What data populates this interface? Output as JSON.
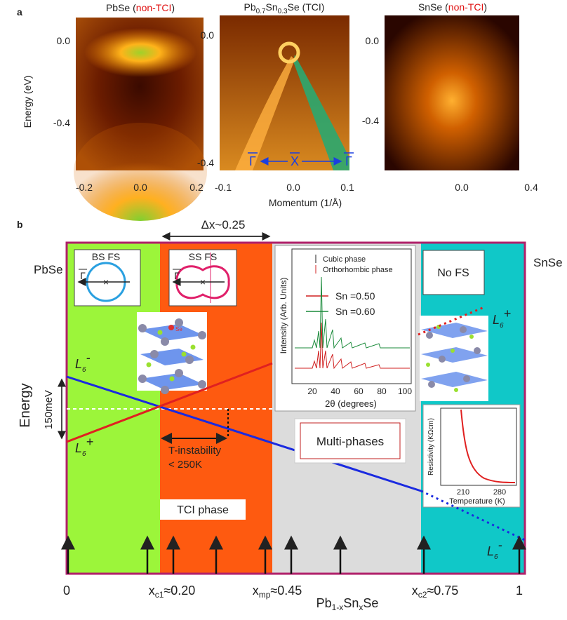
{
  "panel_a": {
    "label": "a",
    "y_axis_label": "Energy (eV)",
    "x_axis_label": "Momentum (1/Å)",
    "images": [
      {
        "title": [
          "PbSe (",
          "non-TCI",
          ")"
        ],
        "yticks": [
          "0.0",
          "-0.4"
        ],
        "xticks": [
          "-0.2",
          "0.0",
          "0.2"
        ]
      },
      {
        "title": [
          "Pb",
          "0.7",
          "Sn",
          "0.3",
          "Se (TCI)"
        ],
        "yticks": [
          "0.0",
          "-0.4"
        ],
        "xticks": [
          "-0.1",
          "0.0",
          "0.1"
        ],
        "points": [
          "Γ",
          "X",
          "Γ"
        ]
      },
      {
        "title": [
          "SnSe (",
          "non-TCI",
          ")"
        ],
        "yticks": [
          "0.0",
          "-0.4"
        ],
        "xticks": [
          "0.0",
          "0.4"
        ]
      }
    ]
  },
  "panel_b": {
    "label": "b",
    "delta_x": "Δx~0.25",
    "left_compound": "PbSe",
    "right_compound": "SnSe",
    "energy_label": "Energy",
    "energy_scale": "150meV",
    "bs_fs": {
      "label": "BS FS",
      "point": "Γ"
    },
    "ss_fs": {
      "label": "SS FS",
      "point": "Γ"
    },
    "no_fs": "No FS",
    "l6_minus": [
      "L",
      "6",
      "-"
    ],
    "l6_plus": [
      "L",
      "6",
      "+"
    ],
    "t_instability": [
      "T-instability",
      "< 250K"
    ],
    "tci_phase": "TCI phase",
    "multi_phases": "Multi-phases",
    "se_atom": "Se",
    "xrd": {
      "legend": [
        "Cubic phase",
        "Orthorhombic phase"
      ],
      "series": [
        "Sn =0.50",
        "Sn =0.60"
      ],
      "y_label": "Intensity (Arb. Units)",
      "x_label": "2θ (degrees)",
      "xticks": [
        "20",
        "40",
        "60",
        "80",
        "100"
      ]
    },
    "resistivity": {
      "y_label": "Resistivity (KΩcm)",
      "x_label": "Temperature (K)",
      "xticks": [
        "210",
        "280"
      ]
    },
    "x_axis": {
      "ticks": [
        [
          "0"
        ],
        [
          "x",
          "c1",
          "≈0.20"
        ],
        [
          "x",
          "mp",
          "≈0.45"
        ],
        [
          "x",
          "c2",
          "≈0.75"
        ],
        [
          "1"
        ]
      ],
      "title": [
        "Pb",
        "1-x",
        "Sn",
        "x",
        "Se"
      ]
    }
  }
}
